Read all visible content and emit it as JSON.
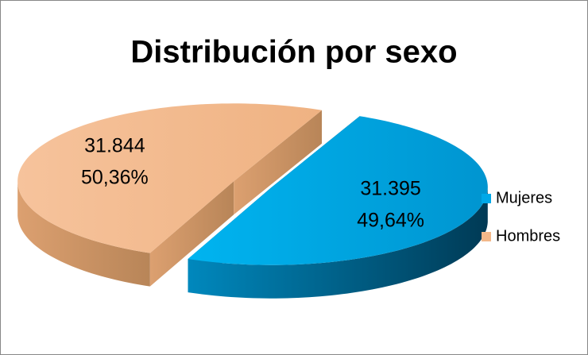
{
  "chart_data": {
    "type": "pie3d",
    "title": "Distribución por sexo",
    "categories": [
      "Mujeres",
      "Hombres"
    ],
    "values": [
      31395,
      31844
    ],
    "value_labels": [
      "31.395",
      "31.844"
    ],
    "percent_labels": [
      "49,64%",
      "50,36%"
    ],
    "colors": [
      "#00a8e8",
      "#f3b88a"
    ],
    "legend": "right"
  }
}
